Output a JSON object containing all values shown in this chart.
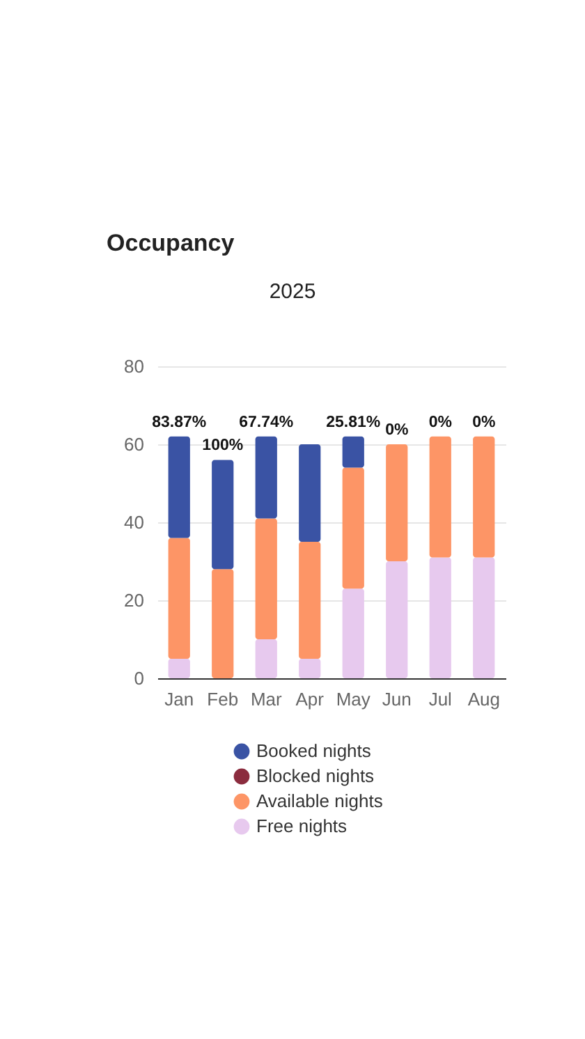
{
  "chart_data": {
    "type": "bar",
    "title": "Occupancy",
    "subtitle": "2025",
    "categories": [
      "Jan",
      "Feb",
      "Mar",
      "Apr",
      "May",
      "Jun",
      "Jul",
      "Aug"
    ],
    "stacked": true,
    "series": [
      {
        "name": "Free nights",
        "color": "#e7c9ee",
        "values": [
          5,
          0,
          10,
          5,
          23,
          30,
          31,
          31
        ]
      },
      {
        "name": "Available nights",
        "color": "#fd9566",
        "values": [
          31,
          28,
          31,
          30,
          31,
          30,
          31,
          31
        ]
      },
      {
        "name": "Blocked nights",
        "color": "#8b2c3e",
        "values": [
          0,
          0,
          0,
          0,
          0,
          0,
          0,
          0
        ]
      },
      {
        "name": "Booked nights",
        "color": "#3a53a4",
        "values": [
          26,
          28,
          21,
          25,
          8,
          0,
          0,
          0
        ]
      }
    ],
    "annotations": [
      {
        "text": "83.87%",
        "x": "Jan",
        "y": 62
      },
      {
        "text": "100%",
        "x": "Feb",
        "y": 56
      },
      {
        "text": "67.74%",
        "x": "Mar",
        "y": 62
      },
      {
        "text": "25.81%",
        "x": "May",
        "y": 62
      },
      {
        "text": "0%",
        "x": "Jun",
        "y": 60
      },
      {
        "text": "0%",
        "x": "Jul",
        "y": 62
      },
      {
        "text": "0%",
        "x": "Aug",
        "y": 62
      }
    ],
    "ylim": [
      0,
      80
    ],
    "yticks": [
      0,
      20,
      40,
      60,
      80
    ],
    "grid": "y",
    "legend": "bottom"
  }
}
